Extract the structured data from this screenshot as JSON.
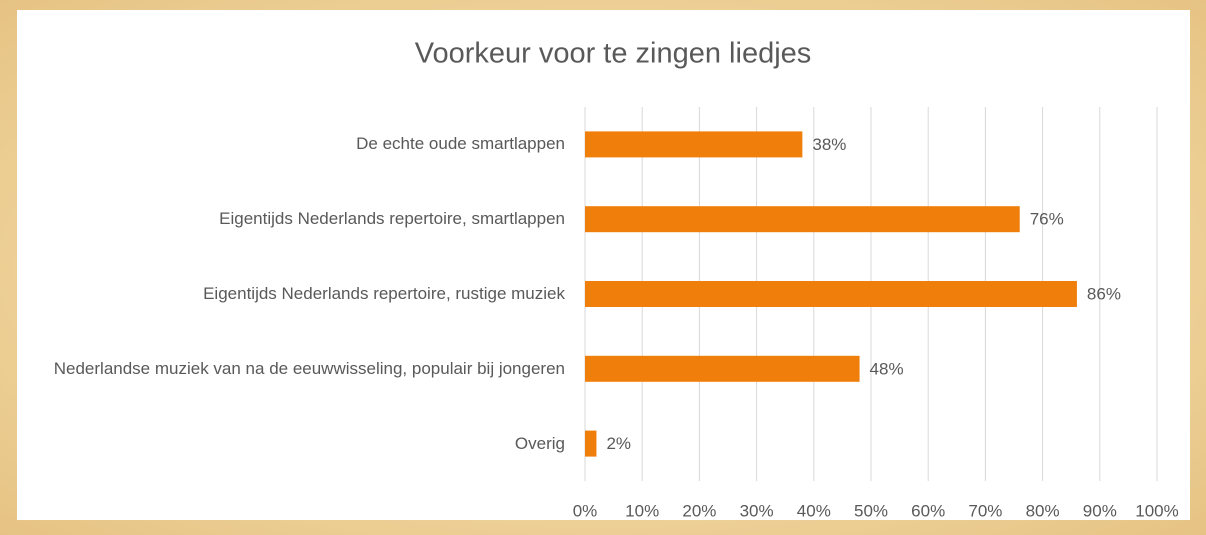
{
  "chart_data": {
    "type": "bar",
    "orientation": "horizontal",
    "title": "Voorkeur voor te zingen liedjes",
    "categories": [
      "De echte oude smartlappen",
      "Eigentijds Nederlands repertoire, smartlappen",
      "Eigentijds Nederlands repertoire, rustige muziek",
      "Nederlandse muziek van na de eeuwwisseling, populair bij jongeren",
      "Overig"
    ],
    "values": [
      38,
      76,
      86,
      48,
      2
    ],
    "value_labels": [
      "38%",
      "76%",
      "86%",
      "48%",
      "2%"
    ],
    "color": "#ef7f0a",
    "xlim": [
      0,
      100
    ],
    "xticks": [
      {
        "value": 0,
        "label": "0%"
      },
      {
        "value": 10,
        "label": "10%"
      },
      {
        "value": 20,
        "label": "20%"
      },
      {
        "value": 30,
        "label": "30%"
      },
      {
        "value": 40,
        "label": "40%"
      },
      {
        "value": 50,
        "label": "50%"
      },
      {
        "value": 60,
        "label": "60%"
      },
      {
        "value": 70,
        "label": "70%"
      },
      {
        "value": 80,
        "label": "80%"
      },
      {
        "value": 90,
        "label": "90%"
      },
      {
        "value": 100,
        "label": "100%"
      }
    ],
    "grid": true
  }
}
